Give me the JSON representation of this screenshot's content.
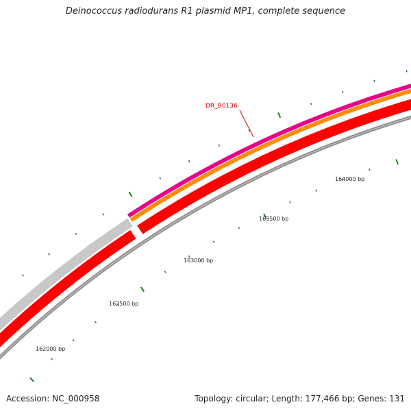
{
  "title": "Deinococcus radiodurans R1 plasmid MP1, complete sequence",
  "footer": {
    "accession": "Accession: NC_000958",
    "summary": "Topology: circular; Length: 177,466 bp; Genes: 131"
  },
  "colors": {
    "backbone": "#8a8a8a",
    "cds_forward": "#e8008a",
    "orf": "#ff8c00",
    "cds_reverse": "#ff0000",
    "gray_feature": "#c8c8c8",
    "tick": "#1a7a1a",
    "gene_label": "#cc0000"
  },
  "scale_labels": [
    "162000 bp",
    "162500 bp",
    "163000 bp",
    "163500 bp",
    "164000 bp"
  ],
  "gene_labels": [
    "DR_B0136"
  ]
}
